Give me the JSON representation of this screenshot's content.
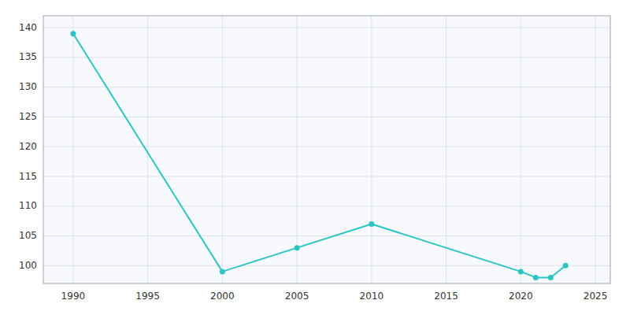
{
  "chart_data": {
    "type": "line",
    "x": [
      1990,
      2000,
      2005,
      2010,
      2020,
      2021,
      2022,
      2023
    ],
    "values": [
      139,
      99,
      103,
      107,
      99,
      98,
      98,
      100
    ],
    "color": "#2EC4C4",
    "marker": "circle",
    "xlim": [
      1988,
      2026
    ],
    "ylim": [
      97,
      142
    ],
    "xticks": [
      1990,
      1995,
      2000,
      2005,
      2010,
      2015,
      2020,
      2025
    ],
    "yticks": [
      100,
      105,
      110,
      115,
      120,
      125,
      130,
      135,
      140
    ],
    "grid": true
  }
}
